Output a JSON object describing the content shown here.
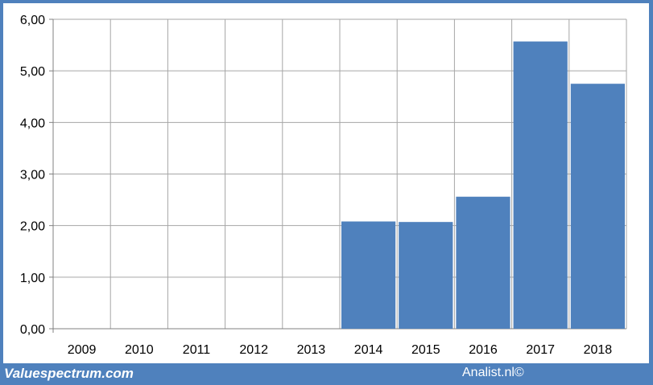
{
  "footer": {
    "left_text": "Valuespectrum.com",
    "right_text": "Analist.nl©"
  },
  "colors": {
    "frame": "#4f81bd",
    "bar": "#4f81bd",
    "grid": "#a6a6a6",
    "plot_background": "#ffffff"
  },
  "chart_data": {
    "type": "bar",
    "title": "",
    "xlabel": "",
    "ylabel": "",
    "categories": [
      "2009",
      "2010",
      "2011",
      "2012",
      "2013",
      "2014",
      "2015",
      "2016",
      "2017",
      "2018"
    ],
    "values": [
      null,
      null,
      null,
      null,
      null,
      2.08,
      2.07,
      2.56,
      5.57,
      4.75
    ],
    "ylim": [
      0,
      6
    ],
    "yticks": [
      0,
      1,
      2,
      3,
      4,
      5,
      6
    ],
    "ytick_labels": [
      "0,00",
      "1,00",
      "2,00",
      "3,00",
      "4,00",
      "5,00",
      "6,00"
    ],
    "grid": "both",
    "legend": "none"
  }
}
